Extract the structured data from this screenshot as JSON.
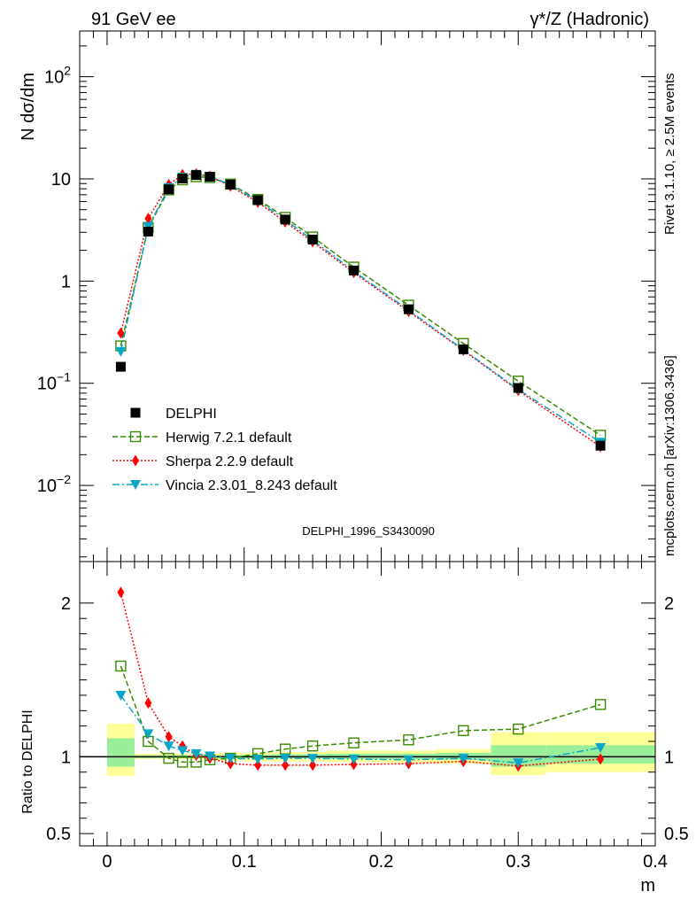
{
  "header": {
    "left": "91 GeV ee",
    "right": "γ*/Z (Hadronic)"
  },
  "side_labels": {
    "top": "Rivet 3.1.10, ≥ 2.5M events",
    "bottom": "mcplots.cern.ch [arXiv:1306.3436]"
  },
  "watermark": "DELPHI_1996_S3430090",
  "chart_data": [
    {
      "type": "line",
      "panel": "main",
      "ylabel": "N dσ/dm",
      "yscale": "log",
      "ylim": [
        0.0018,
        280
      ],
      "xlim": [
        -0.02,
        0.4
      ],
      "y_ticks": [
        {
          "value": 0.01,
          "base": "10",
          "exp": "−2"
        },
        {
          "value": 0.1,
          "base": "10",
          "exp": "−1"
        },
        {
          "value": 1,
          "base": "1",
          "exp": ""
        },
        {
          "value": 10,
          "base": "10",
          "exp": ""
        },
        {
          "value": 100,
          "base": "10",
          "exp": "2"
        }
      ],
      "x": [
        0.01,
        0.03,
        0.045,
        0.055,
        0.065,
        0.075,
        0.09,
        0.11,
        0.13,
        0.15,
        0.18,
        0.22,
        0.26,
        0.3,
        0.36
      ],
      "series": [
        {
          "name": "DELPHI",
          "style": "data",
          "color": "#000000",
          "values": [
            0.145,
            3.05,
            7.9,
            10.1,
            10.9,
            10.5,
            8.8,
            6.2,
            4.0,
            2.55,
            1.27,
            0.53,
            0.215,
            0.09,
            0.0245
          ]
        },
        {
          "name": "Herwig 7.2.1 default",
          "style": "herwig",
          "color": "#3a8a00",
          "values": [
            0.232,
            3.35,
            7.8,
            9.8,
            10.5,
            10.3,
            8.9,
            6.3,
            4.2,
            2.7,
            1.37,
            0.58,
            0.245,
            0.105,
            0.031
          ]
        },
        {
          "name": "Sherpa 2.2.9 default",
          "style": "sherpa",
          "color": "#ff0000",
          "values": [
            0.31,
            4.1,
            8.8,
            11.0,
            11.2,
            10.6,
            8.5,
            5.9,
            3.8,
            2.42,
            1.21,
            0.505,
            0.21,
            0.085,
            0.024
          ]
        },
        {
          "name": "Vincia 2.3.01_8.243 default",
          "style": "vincia",
          "color": "#0aa6c8",
          "values": [
            0.205,
            3.4,
            8.2,
            10.4,
            11.1,
            10.6,
            8.75,
            6.1,
            4.0,
            2.52,
            1.25,
            0.52,
            0.213,
            0.087,
            0.0265
          ]
        }
      ]
    },
    {
      "type": "line",
      "panel": "ratio",
      "ylabel": "Ratio to DELPHI",
      "ylim": [
        0.42,
        2.27
      ],
      "xlim": [
        -0.02,
        0.4
      ],
      "xlabel": "m",
      "x_ticks": [
        "0",
        "0.1",
        "0.2",
        "0.3",
        "0.4"
      ],
      "y_ticks": [
        "0.5",
        "1",
        "2"
      ],
      "bands": [
        {
          "x0": 0.0,
          "x1": 0.02,
          "yellow": [
            0.875,
            1.215
          ],
          "green": [
            0.935,
            1.12
          ]
        },
        {
          "x0": 0.02,
          "x1": 0.08,
          "yellow": [
            0.985,
            1.02
          ],
          "green": [
            0.99,
            1.01
          ]
        },
        {
          "x0": 0.08,
          "x1": 0.1,
          "yellow": [
            0.975,
            1.025
          ],
          "green": [
            0.99,
            1.01
          ]
        },
        {
          "x0": 0.1,
          "x1": 0.12,
          "yellow": [
            0.97,
            1.025
          ],
          "green": [
            0.99,
            1.012
          ]
        },
        {
          "x0": 0.12,
          "x1": 0.14,
          "yellow": [
            0.97,
            1.03
          ],
          "green": [
            0.99,
            1.015
          ]
        },
        {
          "x0": 0.14,
          "x1": 0.16,
          "yellow": [
            0.97,
            1.03
          ],
          "green": [
            0.99,
            1.015
          ]
        },
        {
          "x0": 0.16,
          "x1": 0.2,
          "yellow": [
            0.965,
            1.04
          ],
          "green": [
            0.985,
            1.02
          ]
        },
        {
          "x0": 0.2,
          "x1": 0.24,
          "yellow": [
            0.96,
            1.04
          ],
          "green": [
            0.985,
            1.02
          ]
        },
        {
          "x0": 0.24,
          "x1": 0.28,
          "yellow": [
            0.955,
            1.05
          ],
          "green": [
            0.98,
            1.025
          ]
        },
        {
          "x0": 0.28,
          "x1": 0.32,
          "yellow": [
            0.88,
            1.16
          ],
          "green": [
            0.935,
            1.075
          ]
        },
        {
          "x0": 0.32,
          "x1": 0.4,
          "yellow": [
            0.9,
            1.16
          ],
          "green": [
            0.955,
            1.075
          ]
        }
      ],
      "x": [
        0.01,
        0.03,
        0.045,
        0.055,
        0.065,
        0.075,
        0.09,
        0.11,
        0.13,
        0.15,
        0.18,
        0.22,
        0.26,
        0.3,
        0.36
      ],
      "series": [
        {
          "name": "Herwig 7.2.1 default",
          "style": "herwig",
          "color": "#3a8a00",
          "values": [
            1.59,
            1.1,
            0.99,
            0.965,
            0.965,
            0.98,
            0.99,
            1.02,
            1.05,
            1.07,
            1.09,
            1.11,
            1.17,
            1.18,
            1.34
          ]
        },
        {
          "name": "Sherpa 2.2.9 default",
          "style": "sherpa",
          "color": "#ff0000",
          "values": [
            2.07,
            1.35,
            1.13,
            1.07,
            1.01,
            0.99,
            0.955,
            0.945,
            0.945,
            0.945,
            0.95,
            0.955,
            0.97,
            0.94,
            0.985
          ]
        },
        {
          "name": "Vincia 2.3.01_8.243 default",
          "style": "vincia",
          "color": "#0aa6c8",
          "values": [
            1.4,
            1.15,
            1.07,
            1.04,
            1.02,
            1.005,
            0.99,
            0.985,
            0.99,
            0.99,
            0.985,
            0.98,
            0.99,
            0.96,
            1.06
          ]
        }
      ]
    }
  ]
}
